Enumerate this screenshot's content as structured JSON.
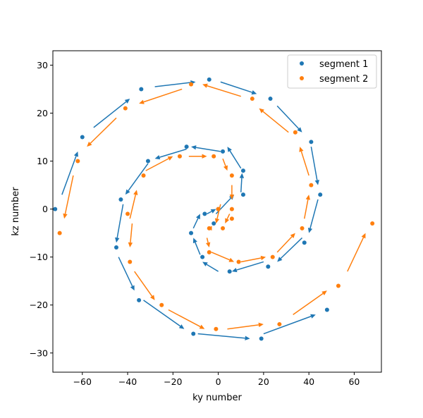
{
  "chart_data": {
    "type": "scatter",
    "title": "",
    "xlabel": "ky number",
    "ylabel": "kz number",
    "xlim": [
      -73,
      72
    ],
    "ylim": [
      -34,
      33
    ],
    "xticks": [
      -60,
      -40,
      -20,
      0,
      20,
      40,
      60
    ],
    "yticks": [
      -30,
      -20,
      -10,
      0,
      10,
      20,
      30
    ],
    "grid": false,
    "legend_position": "top-right",
    "series": [
      {
        "name": "segment 1",
        "color": "#1f77b4",
        "points": [
          [
            0,
            0
          ],
          [
            -2,
            -3
          ],
          [
            -6,
            -1
          ],
          [
            -12,
            -5
          ],
          [
            -7,
            -10
          ],
          [
            5,
            -13
          ],
          [
            22,
            -12
          ],
          [
            38,
            -7
          ],
          [
            45,
            3
          ],
          [
            41,
            14
          ],
          [
            23,
            23
          ],
          [
            -4,
            27
          ],
          [
            -34,
            25
          ],
          [
            -60,
            15
          ],
          [
            -72,
            0
          ],
          [
            -45,
            -8
          ],
          [
            -35,
            -19
          ],
          [
            -11,
            -26
          ],
          [
            19,
            -27
          ],
          [
            48,
            -21
          ],
          [
            -43,
            2
          ],
          [
            -31,
            10
          ],
          [
            -14,
            13
          ],
          [
            2,
            12
          ],
          [
            11,
            8
          ],
          [
            11,
            3
          ]
        ],
        "arrows": [
          [
            [
              -1,
              -1
            ],
            [
              7,
              3
            ]
          ],
          [
            [
              10,
              3.5
            ],
            [
              10.5,
              7.5
            ]
          ],
          [
            [
              10,
              8.5
            ],
            [
              4,
              13
            ]
          ],
          [
            [
              1,
              12
            ],
            [
              -12,
              13
            ]
          ],
          [
            [
              -14,
              12.5
            ],
            [
              -28,
              10.5
            ]
          ],
          [
            [
              -31,
              9.5
            ],
            [
              -41,
              3
            ]
          ],
          [
            [
              -42,
              1
            ],
            [
              -45,
              -7
            ]
          ],
          [
            [
              -44,
              -10
            ],
            [
              -37,
              -17
            ]
          ],
          [
            [
              -33,
              -19
            ],
            [
              -15,
              -25
            ]
          ],
          [
            [
              -9,
              -26
            ],
            [
              14,
              -27
            ]
          ],
          [
            [
              20,
              -26
            ],
            [
              43,
              -22
            ]
          ],
          [
            [
              -69,
              3
            ],
            [
              -62,
              12
            ]
          ],
          [
            [
              -55,
              17
            ],
            [
              -39,
              23
            ]
          ],
          [
            [
              -28,
              25.5
            ],
            [
              -10,
              26.5
            ]
          ],
          [
            [
              1,
              26.5
            ],
            [
              17,
              24
            ]
          ],
          [
            [
              26,
              21.5
            ],
            [
              37,
              16
            ]
          ],
          [
            [
              41,
              13
            ],
            [
              44,
              5
            ]
          ],
          [
            [
              44,
              2
            ],
            [
              40,
              -5
            ]
          ],
          [
            [
              37,
              -6
            ],
            [
              26,
              -11
            ]
          ],
          [
            [
              20,
              -11
            ],
            [
              6,
              -13
            ]
          ],
          [
            [
              0,
              -13
            ],
            [
              -7,
              -11
            ]
          ],
          [
            [
              -8,
              -9.5
            ],
            [
              -11,
              -6
            ]
          ],
          [
            [
              -11,
              -4
            ],
            [
              -8,
              -1
            ]
          ],
          [
            [
              -5,
              -1
            ],
            [
              -1,
              0
            ]
          ]
        ]
      },
      {
        "name": "segment 2",
        "color": "#ff7f0e",
        "points": [
          [
            0,
            0
          ],
          [
            6,
            7
          ],
          [
            -2,
            11
          ],
          [
            -17,
            11
          ],
          [
            -33,
            7
          ],
          [
            -40,
            -1
          ],
          [
            -39,
            -11
          ],
          [
            -25,
            -20
          ],
          [
            -1,
            -25
          ],
          [
            27,
            -24
          ],
          [
            53,
            -16
          ],
          [
            68,
            -3
          ],
          [
            41,
            5
          ],
          [
            34,
            16
          ],
          [
            15,
            23
          ],
          [
            -12,
            26
          ],
          [
            -41,
            21
          ],
          [
            -62,
            10
          ],
          [
            -70,
            -5
          ],
          [
            6,
            0
          ],
          [
            6,
            -2
          ],
          [
            2,
            -4
          ],
          [
            -4,
            -4
          ],
          [
            -4,
            -9
          ],
          [
            9,
            -11
          ],
          [
            24,
            -10
          ],
          [
            37,
            -4
          ]
        ],
        "arrows": [
          [
            [
              1,
              1
            ],
            [
              -1,
              -3
            ]
          ],
          [
            [
              -3,
              -4
            ],
            [
              -5,
              -4
            ]
          ],
          [
            [
              -5,
              -6
            ],
            [
              -4,
              -8
            ]
          ],
          [
            [
              -3,
              -9
            ],
            [
              7,
              -11
            ]
          ],
          [
            [
              10,
              -11
            ],
            [
              21,
              -10
            ]
          ],
          [
            [
              26,
              -9
            ],
            [
              34,
              -5
            ]
          ],
          [
            [
              38,
              -2
            ],
            [
              40,
              3
            ]
          ],
          [
            [
              40,
              7
            ],
            [
              36,
              13
            ]
          ],
          [
            [
              31,
              16
            ],
            [
              18,
              21
            ]
          ],
          [
            [
              10,
              23.5
            ],
            [
              -7,
              26
            ]
          ],
          [
            [
              -16,
              25
            ],
            [
              -35,
              22
            ]
          ],
          [
            [
              -45,
              19
            ],
            [
              -58,
              13
            ]
          ],
          [
            [
              -64,
              7
            ],
            [
              -68,
              -2
            ]
          ],
          [
            [
              -38,
              -3
            ],
            [
              -39,
              -8
            ]
          ],
          [
            [
              -37,
              -13
            ],
            [
              -28,
              -19
            ]
          ],
          [
            [
              -22,
              -21
            ],
            [
              -6,
              -25
            ]
          ],
          [
            [
              4,
              -25
            ],
            [
              20,
              -24
            ]
          ],
          [
            [
              33,
              -22
            ],
            [
              48,
              -17
            ]
          ],
          [
            [
              57,
              -13
            ],
            [
              65,
              -5
            ]
          ],
          [
            [
              -39,
              -2
            ],
            [
              -36,
              4
            ]
          ],
          [
            [
              -32,
              8
            ],
            [
              -20,
              11
            ]
          ],
          [
            [
              -13,
              11
            ],
            [
              -5,
              11
            ]
          ],
          [
            [
              2,
              10.5
            ],
            [
              4,
              8
            ]
          ],
          [
            [
              6,
              5
            ],
            [
              6,
              2
            ]
          ],
          [
            [
              5,
              -1
            ],
            [
              3,
              -3
            ]
          ]
        ]
      }
    ]
  }
}
